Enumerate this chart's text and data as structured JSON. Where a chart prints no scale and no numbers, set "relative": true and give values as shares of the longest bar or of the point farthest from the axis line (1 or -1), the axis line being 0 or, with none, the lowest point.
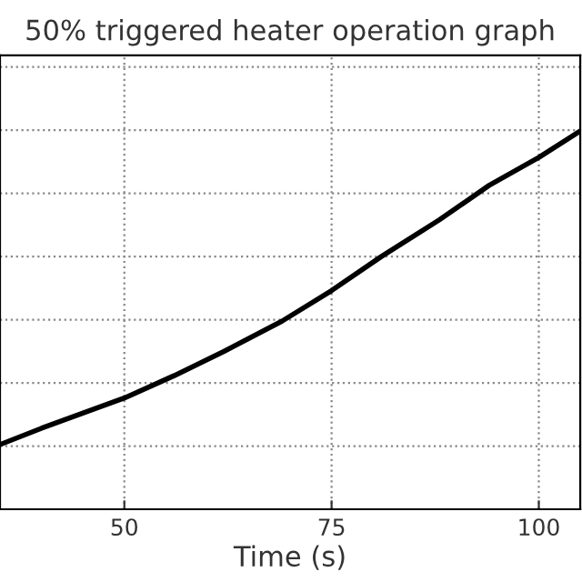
{
  "chart_data": {
    "type": "line",
    "title": "50% triggered heater operation graph",
    "xlabel": "Time (s)",
    "relative": true,
    "x": [
      35,
      40,
      50,
      56,
      62,
      69,
      75,
      81,
      88,
      94,
      100,
      105
    ],
    "series": [
      {
        "color": "#000000",
        "values": [
          0.171,
          0.214,
          0.294,
          0.353,
          0.417,
          0.497,
          0.578,
          0.668,
          0.765,
          0.856,
          0.93,
          1.0
        ]
      }
    ],
    "xlim": [
      35,
      105
    ],
    "xticks": [
      50,
      75,
      100
    ],
    "grid": true,
    "marker": "none",
    "line_style": "solid"
  }
}
